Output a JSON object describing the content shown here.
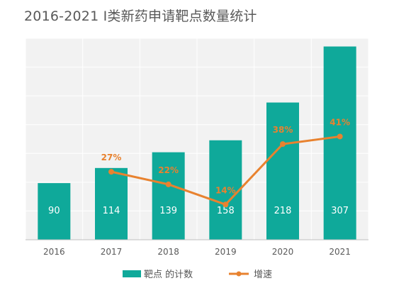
{
  "title": "2016-2021 I类新药申请靶点数量统计",
  "chart_data": {
    "type": "bar",
    "categories": [
      "2016",
      "2017",
      "2018",
      "2019",
      "2020",
      "2021"
    ],
    "series": [
      {
        "name": "靶点 的计数",
        "type": "bar",
        "values": [
          90,
          114,
          139,
          158,
          218,
          307
        ],
        "color": "#0fa99a"
      },
      {
        "name": "增速",
        "type": "line",
        "values": [
          null,
          0.27,
          0.22,
          0.14,
          0.38,
          0.41
        ],
        "labels": [
          "",
          "27%",
          "22%",
          "14%",
          "38%",
          "41%"
        ],
        "color": "#e8822f"
      }
    ],
    "ylim": [
      0,
      320
    ],
    "ylim_secondary": [
      0,
      0.8
    ],
    "grid": true,
    "legend": "bottom"
  }
}
